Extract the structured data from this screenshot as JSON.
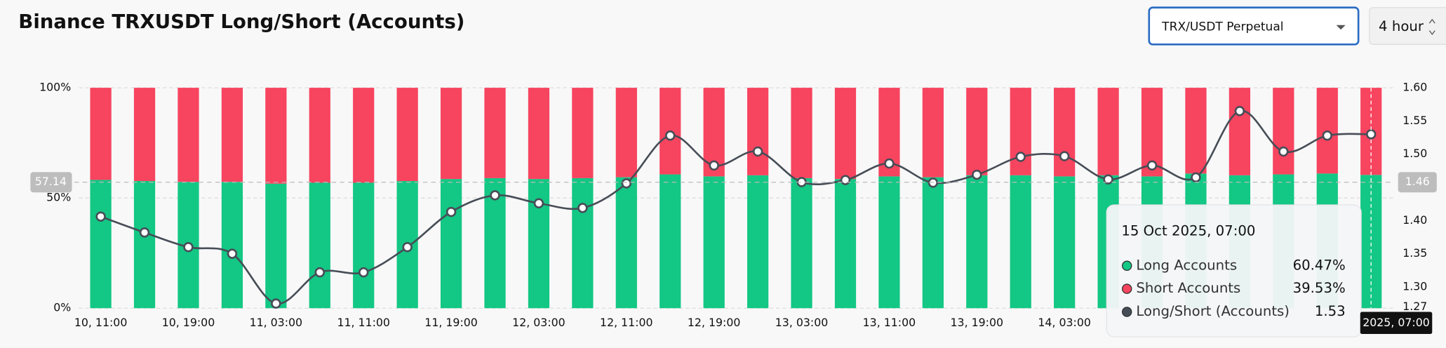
{
  "controls": {
    "market": "TRX/USDT Perpetual",
    "interval": "4 hour"
  },
  "chart_data": {
    "type": "stacked-bar-line",
    "title": "Binance TRXUSDT Long/Short (Accounts)",
    "categories": [
      "10, 11:00",
      null,
      "10, 19:00",
      null,
      "11, 03:00",
      null,
      "11, 11:00",
      null,
      "11, 19:00",
      null,
      "12, 03:00",
      null,
      "12, 11:00",
      null,
      "12, 19:00",
      null,
      "13, 03:00",
      null,
      "13, 11:00",
      null,
      "13, 19:00",
      null,
      "14, 03:00",
      null,
      null,
      null,
      null,
      null,
      null,
      null
    ],
    "series": [
      {
        "name": "Long Accounts",
        "color": "#13c784",
        "values": [
          58.2,
          57.7,
          57.3,
          57.3,
          56.5,
          56.9,
          56.9,
          57.7,
          58.6,
          59.0,
          58.6,
          59.0,
          59.4,
          60.7,
          59.8,
          60.3,
          59.0,
          58.6,
          59.8,
          59.4,
          60.3,
          60.3,
          59.8,
          60.3,
          59.8,
          61.1,
          60.3,
          60.7,
          61.1,
          60.47
        ]
      },
      {
        "name": "Short Accounts",
        "color": "#f7445f",
        "values": [
          41.8,
          42.3,
          42.7,
          42.7,
          43.5,
          43.1,
          43.1,
          42.3,
          41.4,
          41.0,
          41.4,
          41.0,
          40.6,
          39.3,
          40.2,
          39.7,
          41.0,
          41.4,
          40.2,
          40.6,
          39.7,
          39.7,
          40.2,
          39.7,
          40.2,
          38.9,
          39.7,
          39.3,
          38.9,
          39.53
        ]
      },
      {
        "name": "Long/Short (Accounts)",
        "color": "#474d57",
        "axis": "y2",
        "values": [
          1.406,
          1.382,
          1.36,
          1.35,
          1.275,
          1.322,
          1.322,
          1.36,
          1.413,
          1.438,
          1.426,
          1.419,
          1.456,
          1.528,
          1.483,
          1.504,
          1.458,
          1.461,
          1.486,
          1.457,
          1.469,
          1.496,
          1.497,
          1.462,
          1.483,
          1.465,
          1.565,
          1.504,
          1.528,
          1.53
        ]
      }
    ],
    "ylim": [
      0,
      100
    ],
    "yticks": [
      {
        "value": 0,
        "label": "0%"
      },
      {
        "value": 50,
        "label": "50%"
      },
      {
        "value": 100,
        "label": "100%"
      }
    ],
    "y2lim": [
      1.268,
      1.6
    ],
    "y2ticks": [
      {
        "value": 1.6,
        "label": "1.60"
      },
      {
        "value": 1.55,
        "label": "1.55"
      },
      {
        "value": 1.5,
        "label": "1.50"
      },
      {
        "value": 1.4,
        "label": "1.40"
      },
      {
        "value": 1.35,
        "label": "1.35"
      },
      {
        "value": 1.3,
        "label": "1.30"
      },
      {
        "value": 1.27,
        "label": "1.27"
      }
    ],
    "grid": true,
    "crosshair": {
      "y": 57.14,
      "y2": 1.46,
      "x_label": "2025, 07:00"
    },
    "tooltip": {
      "title": "15 Oct 2025, 07:00",
      "values": [
        "60.47%",
        "39.53%",
        "1.53"
      ]
    }
  }
}
